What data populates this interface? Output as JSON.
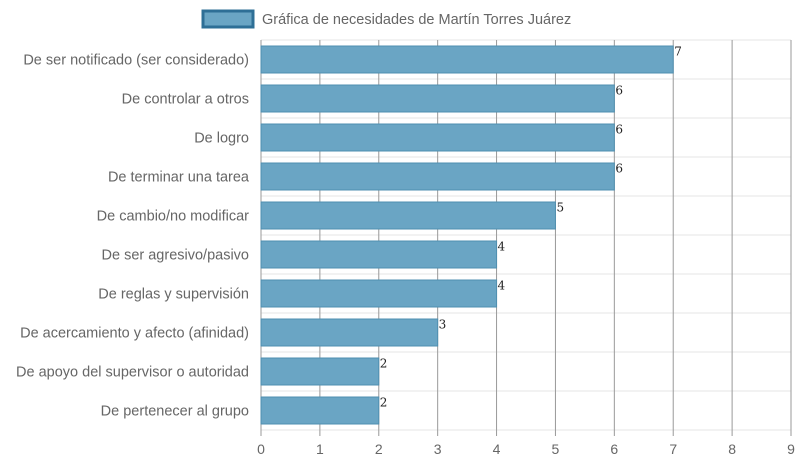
{
  "colors": {
    "bar_fill": "#6aa5c4",
    "bar_stroke": "#4f8fb0",
    "legend_fill": "#6aa5c4",
    "legend_stroke": "#2e6f96",
    "grid_vertical": "#999999",
    "grid_horizontal": "#e6e6e6",
    "text": "#666666"
  },
  "chart_data": {
    "type": "bar",
    "orientation": "horizontal",
    "legend_position": "top",
    "grid": true,
    "xlim": [
      0,
      9
    ],
    "ticks": [
      "0",
      "1",
      "2",
      "3",
      "4",
      "5",
      "6",
      "7",
      "8",
      "9"
    ],
    "categories": [
      "De ser notificado (ser considerado)",
      "De controlar a otros",
      "De logro",
      "De terminar una tarea",
      "De cambio/no modificar",
      "De ser agresivo/pasivo",
      "De reglas y supervisión",
      "De acercamiento y afecto (afinidad)",
      "De apoyo del supervisor o autoridad",
      "De pertenecer al grupo"
    ],
    "series": [
      {
        "name": "Gráfica de necesidades de Martín Torres Juárez",
        "values": [
          7,
          6,
          6,
          6,
          5,
          4,
          4,
          3,
          2,
          2
        ]
      }
    ]
  }
}
